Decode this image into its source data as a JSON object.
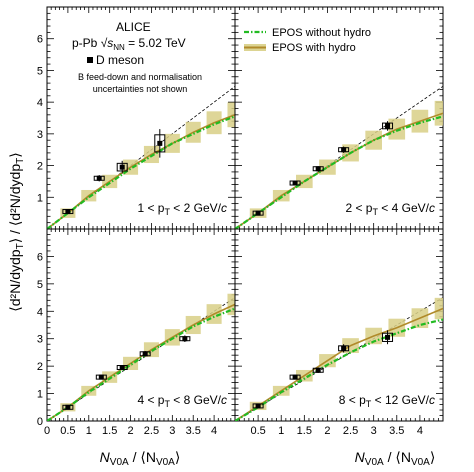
{
  "figure": {
    "ylabel_main": "⟨d²N/dydp",
    "ylabel_sub": "T",
    "ylabel_mid": "⟩ / ⟨d²N/dydp",
    "ylabel_sub2": "T",
    "ylabel_end": "⟩",
    "xlabel_n": "N",
    "xlabel_sub": "V0A",
    "xlabel_mid": " / ⟨N",
    "xlabel_sub2": "V0A",
    "xlabel_end": "⟩"
  },
  "annotations": {
    "experiment": "ALICE",
    "system_prefix": "p-Pb ",
    "sqrt_s": "s",
    "sqrt_sub": "NN",
    "energy": " = 5.02 TeV",
    "particle": "D meson",
    "note_line1": "B feed-down and normalisation",
    "note_line2": "uncertainties not shown"
  },
  "legend": {
    "placement": "top-right",
    "items": [
      {
        "label": "EPOS without hydro",
        "color": "#22bb22",
        "style": "dash-dot"
      },
      {
        "label": "EPOS with hydro",
        "color": "#b08a2a",
        "style": "solid-band"
      }
    ]
  },
  "chart_data": [
    {
      "type": "scatter",
      "panel": "top-left",
      "pt_label_prefix": "1 < p",
      "pt_label_sub": "T",
      "pt_label_suffix": " < 2 GeV/",
      "pt_label_unit": "c",
      "xlim": [
        0,
        4.5
      ],
      "ylim": [
        0,
        7
      ],
      "x": [
        0.5,
        1.25,
        1.8,
        2.7
      ],
      "y": [
        0.55,
        1.6,
        1.95,
        2.7
      ],
      "yerr": [
        0.05,
        0.1,
        0.2,
        0.45
      ],
      "series": [
        {
          "name": "EPOS without hydro",
          "x": [
            0,
            0.5,
            1,
            1.5,
            2,
            2.5,
            3,
            3.5,
            4,
            4.5
          ],
          "y": [
            0,
            0.5,
            1.0,
            1.45,
            1.9,
            2.3,
            2.7,
            3.0,
            3.3,
            3.55
          ]
        },
        {
          "name": "EPOS with hydro",
          "x": [
            0,
            0.5,
            1,
            1.5,
            2,
            2.5,
            3,
            3.5,
            4,
            4.5
          ],
          "y": [
            0,
            0.5,
            1.05,
            1.5,
            1.95,
            2.35,
            2.7,
            3.05,
            3.35,
            3.6
          ]
        }
      ]
    },
    {
      "type": "scatter",
      "panel": "top-right",
      "pt_label_prefix": "2 < p",
      "pt_label_sub": "T",
      "pt_label_suffix": " < 4 GeV/",
      "pt_label_unit": "c",
      "xlim": [
        0,
        4.5
      ],
      "ylim": [
        0,
        7
      ],
      "x": [
        0.5,
        1.3,
        1.8,
        2.35,
        3.3
      ],
      "y": [
        0.5,
        1.45,
        1.9,
        2.5,
        3.25
      ],
      "yerr": [
        0.04,
        0.06,
        0.08,
        0.1,
        0.15
      ],
      "series": [
        {
          "name": "EPOS without hydro",
          "x": [
            0,
            0.5,
            1,
            1.5,
            2,
            2.5,
            3,
            3.5,
            4,
            4.5
          ],
          "y": [
            0,
            0.5,
            1.0,
            1.5,
            1.95,
            2.4,
            2.8,
            3.1,
            3.35,
            3.55
          ]
        },
        {
          "name": "EPOS with hydro",
          "x": [
            0,
            0.5,
            1,
            1.5,
            2,
            2.5,
            3,
            3.5,
            4,
            4.5
          ],
          "y": [
            0,
            0.5,
            1.05,
            1.5,
            1.95,
            2.4,
            2.8,
            3.15,
            3.4,
            3.65
          ]
        }
      ]
    },
    {
      "type": "scatter",
      "panel": "bottom-left",
      "pt_label_prefix": "4 < p",
      "pt_label_sub": "T",
      "pt_label_suffix": " < 8 GeV/",
      "pt_label_unit": "c",
      "xlim": [
        0,
        4.5
      ],
      "ylim": [
        0,
        7
      ],
      "x": [
        0.5,
        1.3,
        1.8,
        2.35,
        3.3
      ],
      "y": [
        0.5,
        1.6,
        1.95,
        2.45,
        3.0
      ],
      "yerr": [
        0.04,
        0.06,
        0.08,
        0.1,
        0.12
      ],
      "series": [
        {
          "name": "EPOS without hydro",
          "x": [
            0,
            0.5,
            1,
            1.5,
            2,
            2.5,
            3,
            3.5,
            4,
            4.5
          ],
          "y": [
            0,
            0.5,
            1.05,
            1.55,
            2.05,
            2.55,
            3.0,
            3.45,
            3.8,
            4.1
          ]
        },
        {
          "name": "EPOS with hydro",
          "x": [
            0,
            0.5,
            1,
            1.5,
            2,
            2.5,
            3,
            3.5,
            4,
            4.5
          ],
          "y": [
            0,
            0.5,
            1.1,
            1.6,
            2.1,
            2.6,
            3.05,
            3.5,
            3.9,
            4.25
          ]
        }
      ]
    },
    {
      "type": "scatter",
      "panel": "bottom-right",
      "pt_label_prefix": "8 < p",
      "pt_label_sub": "T",
      "pt_label_suffix": " < 12 GeV/",
      "pt_label_unit": "c",
      "xlim": [
        0,
        4.5
      ],
      "ylim": [
        0,
        7
      ],
      "x": [
        0.5,
        1.3,
        1.8,
        2.35,
        3.3
      ],
      "y": [
        0.55,
        1.6,
        1.85,
        2.65,
        3.05
      ],
      "yerr": [
        0.06,
        0.08,
        0.1,
        0.15,
        0.25
      ],
      "series": [
        {
          "name": "EPOS without hydro",
          "x": [
            0,
            0.5,
            1,
            1.5,
            2,
            2.5,
            3,
            3.5,
            4,
            4.5
          ],
          "y": [
            0,
            0.5,
            1.05,
            1.55,
            2.05,
            2.5,
            2.9,
            3.2,
            3.5,
            3.7
          ]
        },
        {
          "name": "EPOS with hydro",
          "x": [
            0,
            0.5,
            1,
            1.5,
            2,
            2.5,
            3,
            3.5,
            4,
            4.5
          ],
          "y": [
            0,
            0.55,
            1.1,
            1.65,
            2.2,
            2.75,
            3.1,
            3.4,
            3.75,
            4.1
          ]
        }
      ]
    }
  ],
  "axes": {
    "x_ticks": [
      "0",
      "0.5",
      "1",
      "1.5",
      "2",
      "2.5",
      "3",
      "3.5",
      "4"
    ],
    "x_tick_values": [
      0,
      0.5,
      1,
      1.5,
      2,
      2.5,
      3,
      3.5,
      4
    ],
    "y_ticks": [
      "0",
      "1",
      "2",
      "3",
      "4",
      "5",
      "6"
    ],
    "y_tick_values": [
      0,
      1,
      2,
      3,
      4,
      5,
      6
    ],
    "x_ticks_right": [
      "0.5",
      "1",
      "1.5",
      "2",
      "2.5",
      "3",
      "3.5",
      "4"
    ],
    "x_tick_values_right": [
      0.5,
      1,
      1.5,
      2,
      2.5,
      3,
      3.5,
      4
    ],
    "y_ticks_top": [
      "1",
      "2",
      "3",
      "4",
      "5",
      "6"
    ],
    "y_tick_values_top": [
      1,
      2,
      3,
      4,
      5,
      6
    ]
  }
}
